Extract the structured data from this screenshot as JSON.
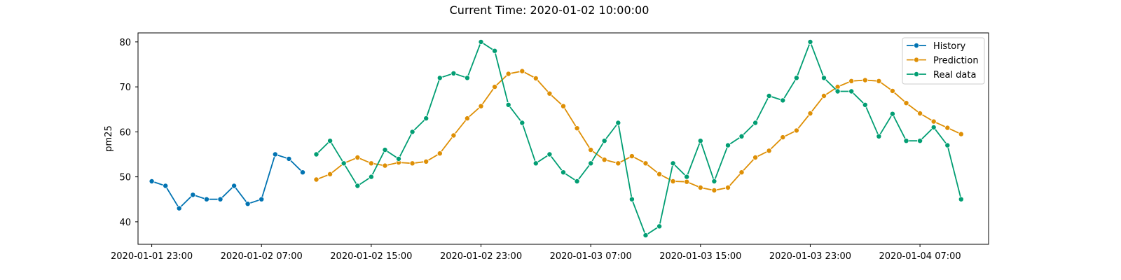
{
  "chart_data": {
    "type": "line",
    "title": "Current Time: 2020-01-02 10:00:00",
    "xlabel": "",
    "ylabel": "pm25",
    "x_start": "2020-01-01 23:00",
    "x_step_hours": 1,
    "xlim": [
      "2020-01-01 22:00",
      "2020-01-04 12:00"
    ],
    "ylim": [
      35,
      82
    ],
    "y_ticks": [
      40,
      50,
      60,
      70,
      80
    ],
    "x_ticks": [
      "2020-01-01 23:00",
      "2020-01-02 07:00",
      "2020-01-02 15:00",
      "2020-01-02 23:00",
      "2020-01-03 07:00",
      "2020-01-03 15:00",
      "2020-01-03 23:00",
      "2020-01-04 07:00"
    ],
    "grid": false,
    "legend_position": "top-right",
    "series": [
      {
        "name": "History",
        "color": "#0173b2",
        "x_offset_hours": 0,
        "values": [
          49,
          48,
          43,
          46,
          45,
          45,
          48,
          44,
          45,
          55,
          54,
          51
        ]
      },
      {
        "name": "Prediction",
        "color": "#de8f05",
        "x_offset_hours": 12,
        "values": [
          49.4,
          50.6,
          53,
          54.3,
          53,
          52.5,
          53.2,
          53,
          53.4,
          55.2,
          59.2,
          63,
          65.7,
          70,
          72.9,
          73.5,
          71.9,
          68.5,
          65.7,
          60.8,
          56,
          53.8,
          53,
          54.6,
          53,
          50.6,
          49,
          48.9,
          47.6,
          47,
          47.6,
          51,
          54.3,
          55.8,
          58.8,
          60.3,
          64.1,
          68,
          70,
          71.3,
          71.5,
          71.3,
          69.1,
          66.4,
          64.1,
          62.3,
          60.9,
          59.5
        ]
      },
      {
        "name": "Real data",
        "color": "#029e73",
        "x_offset_hours": 12,
        "values": [
          55,
          58,
          53,
          48,
          50,
          56,
          54,
          60,
          63,
          72,
          73,
          72,
          80,
          78,
          66,
          62,
          53,
          55,
          51,
          49,
          53,
          58,
          62,
          45,
          37,
          39,
          53,
          50,
          58,
          49,
          57,
          59,
          62,
          68,
          67,
          72,
          80,
          72,
          69,
          69,
          66,
          59,
          64,
          58,
          58,
          61,
          57,
          45
        ]
      }
    ]
  }
}
